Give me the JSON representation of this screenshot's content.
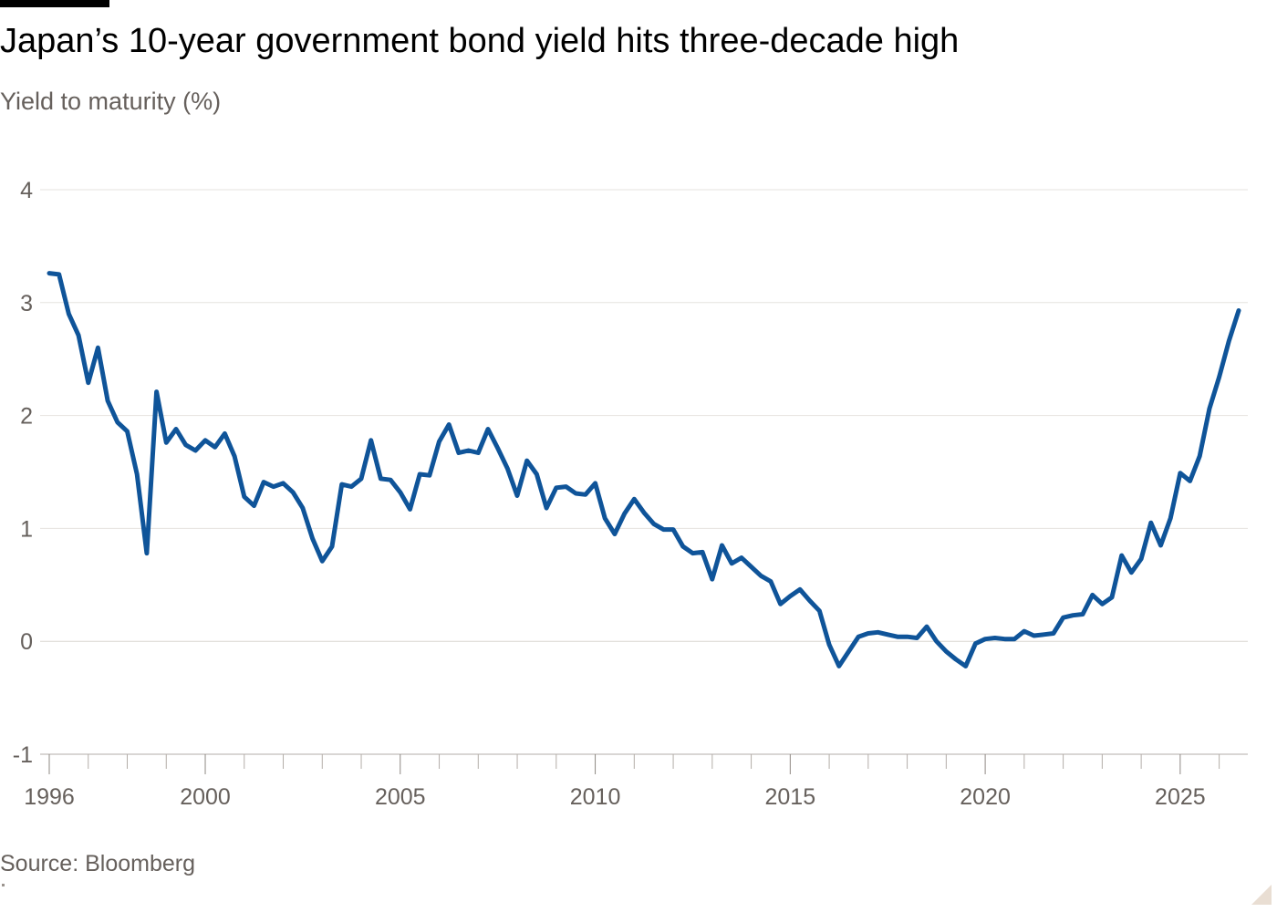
{
  "title": "Japan’s 10-year government bond yield hits three-decade high",
  "subtitle": "Yield to maturity (%)",
  "source": "Source: Bloomberg",
  "colors": {
    "line": "#0F5499",
    "gridline": "#E6E3DF",
    "zero_line": "#D9D5D0",
    "tick_text": "#66605C",
    "axis": "#B3ADA8",
    "background": "#FFFFFF"
  },
  "chart_data": {
    "type": "line",
    "title": "Japan’s 10-year government bond yield hits three-decade high",
    "ylabel": "Yield to maturity (%)",
    "xlabel": "",
    "ylim": [
      -1,
      4
    ],
    "xlim": [
      1996,
      2026.5
    ],
    "y_ticks": [
      4,
      3,
      2,
      1,
      0,
      -1
    ],
    "x_ticks": [
      1996,
      2000,
      2005,
      2010,
      2015,
      2020,
      2025
    ],
    "grid": true,
    "legend": "none",
    "series": [
      {
        "x": [
          1996.0,
          1996.25,
          1996.5,
          1996.75,
          1997.0,
          1997.25,
          1997.5,
          1997.75,
          1998.0,
          1998.25,
          1998.5,
          1998.75,
          1999.0,
          1999.25,
          1999.5,
          1999.75,
          2000.0,
          2000.25,
          2000.5,
          2000.75,
          2001.0,
          2001.25,
          2001.5,
          2001.75,
          2002.0,
          2002.25,
          2002.5,
          2002.75,
          2003.0,
          2003.25,
          2003.5,
          2003.75,
          2004.0,
          2004.25,
          2004.5,
          2004.75,
          2005.0,
          2005.25,
          2005.5,
          2005.75,
          2006.0,
          2006.25,
          2006.5,
          2006.75,
          2007.0,
          2007.25,
          2007.5,
          2007.75,
          2008.0,
          2008.25,
          2008.5,
          2008.75,
          2009.0,
          2009.25,
          2009.5,
          2009.75,
          2010.0,
          2010.25,
          2010.5,
          2010.75,
          2011.0,
          2011.25,
          2011.5,
          2011.75,
          2012.0,
          2012.25,
          2012.5,
          2012.75,
          2013.0,
          2013.25,
          2013.5,
          2013.75,
          2014.0,
          2014.25,
          2014.5,
          2014.75,
          2015.0,
          2015.25,
          2015.5,
          2015.75,
          2016.0,
          2016.25,
          2016.5,
          2016.75,
          2017.0,
          2017.25,
          2017.5,
          2017.75,
          2018.0,
          2018.25,
          2018.5,
          2018.75,
          2019.0,
          2019.25,
          2019.5,
          2019.75,
          2020.0,
          2020.25,
          2020.5,
          2020.75,
          2021.0,
          2021.25,
          2021.5,
          2021.75,
          2022.0,
          2022.25,
          2022.5,
          2022.75,
          2023.0,
          2023.25,
          2023.5,
          2023.75,
          2024.0,
          2024.25,
          2024.5,
          2024.75,
          2025.0,
          2025.25,
          2025.5,
          2025.75,
          2026.0,
          2026.25,
          2026.5
        ],
        "values": [
          3.26,
          3.25,
          2.9,
          2.71,
          2.29,
          2.6,
          2.13,
          1.94,
          1.86,
          1.48,
          0.78,
          2.21,
          1.76,
          1.88,
          1.74,
          1.69,
          1.78,
          1.72,
          1.84,
          1.64,
          1.28,
          1.2,
          1.41,
          1.37,
          1.4,
          1.32,
          1.18,
          0.91,
          0.71,
          0.84,
          1.39,
          1.37,
          1.44,
          1.78,
          1.44,
          1.43,
          1.32,
          1.17,
          1.48,
          1.47,
          1.77,
          1.92,
          1.67,
          1.69,
          1.67,
          1.88,
          1.71,
          1.53,
          1.29,
          1.6,
          1.48,
          1.18,
          1.36,
          1.37,
          1.31,
          1.3,
          1.4,
          1.09,
          0.95,
          1.13,
          1.26,
          1.14,
          1.04,
          0.99,
          0.99,
          0.84,
          0.78,
          0.79,
          0.55,
          0.85,
          0.69,
          0.74,
          0.66,
          0.58,
          0.53,
          0.33,
          0.4,
          0.46,
          0.36,
          0.27,
          -0.03,
          -0.22,
          -0.09,
          0.04,
          0.07,
          0.08,
          0.06,
          0.04,
          0.04,
          0.03,
          0.13,
          0.0,
          -0.09,
          -0.16,
          -0.22,
          -0.02,
          0.02,
          0.03,
          0.02,
          0.02,
          0.09,
          0.05,
          0.06,
          0.07,
          0.21,
          0.23,
          0.24,
          0.41,
          0.33,
          0.39,
          0.76,
          0.61,
          0.73,
          1.05,
          0.85,
          1.09,
          1.49,
          1.42,
          1.64,
          2.06,
          2.34,
          2.66,
          2.93
        ]
      }
    ]
  }
}
